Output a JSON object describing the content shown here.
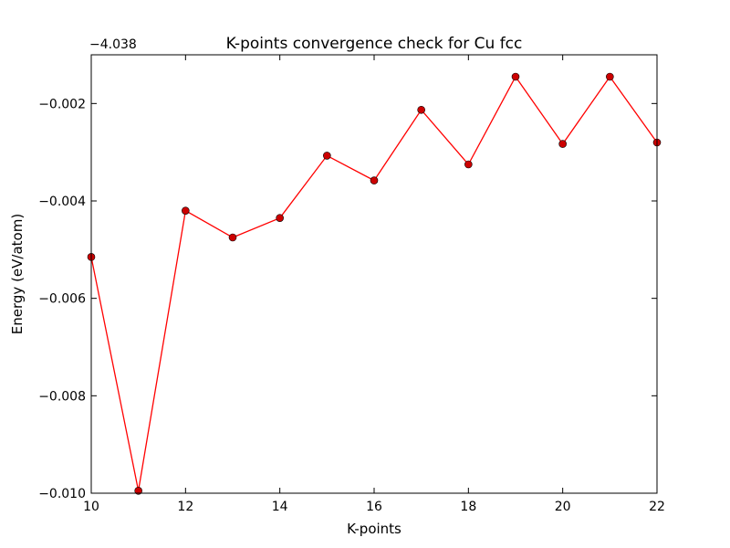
{
  "chart_data": {
    "type": "line",
    "title": "K-points convergence check for Cu fcc",
    "xlabel": "K-points",
    "ylabel": "Energy (eV/atom)",
    "y_offset_label": "−4.038",
    "xlim": [
      10,
      22
    ],
    "ylim": [
      -0.01,
      -0.001
    ],
    "x_ticks": [
      10,
      12,
      14,
      16,
      18,
      20,
      22
    ],
    "x_tick_labels": [
      "10",
      "12",
      "14",
      "16",
      "18",
      "20",
      "22"
    ],
    "y_ticks": [
      -0.01,
      -0.008,
      -0.006,
      -0.004,
      -0.002
    ],
    "y_tick_labels": [
      "−0.010",
      "−0.008",
      "−0.006",
      "−0.004",
      "−0.002"
    ],
    "grid": false,
    "series": [
      {
        "color": "#ff0000",
        "marker_color": "#cc0000",
        "x": [
          10,
          11,
          12,
          13,
          14,
          15,
          16,
          17,
          18,
          19,
          20,
          21,
          22
        ],
        "y": [
          -0.00515,
          -0.00995,
          -0.0042,
          -0.00475,
          -0.00435,
          -0.00307,
          -0.00358,
          -0.00213,
          -0.00325,
          -0.00145,
          -0.00283,
          -0.00145,
          -0.0028
        ]
      }
    ]
  }
}
